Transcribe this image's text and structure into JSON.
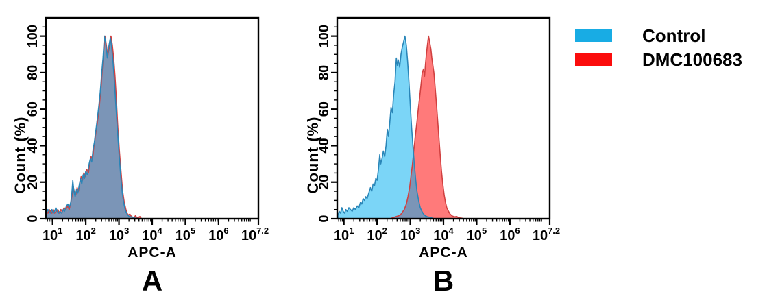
{
  "figure": {
    "background": "#ffffff"
  },
  "legend": {
    "items": [
      {
        "label": "Control",
        "color": "#18ace4"
      },
      {
        "label": "DMC100683",
        "color": "#fb0d0d"
      }
    ]
  },
  "chart_data": [
    {
      "id": "panel-a",
      "type": "area",
      "panel_label": "A",
      "xlabel": "APC-A",
      "ylabel": "Count (%)",
      "x_scale": "log10",
      "xlim_log": [
        0.8,
        7.2
      ],
      "ylim": [
        0,
        110
      ],
      "grid": false,
      "xticks": [
        {
          "base": "10",
          "exp": "1",
          "log": 1
        },
        {
          "base": "10",
          "exp": "2",
          "log": 2
        },
        {
          "base": "10",
          "exp": "3",
          "log": 3
        },
        {
          "base": "10",
          "exp": "4",
          "log": 4
        },
        {
          "base": "10",
          "exp": "5",
          "log": 5
        },
        {
          "base": "10",
          "exp": "6",
          "log": 6
        },
        {
          "base": "10",
          "exp": "7.2",
          "log": 7.2
        }
      ],
      "yticks": [
        {
          "label": "0",
          "value": 0
        },
        {
          "label": "20",
          "value": 20
        },
        {
          "label": "40",
          "value": 40
        },
        {
          "label": "60",
          "value": 60
        },
        {
          "label": "80",
          "value": 80
        },
        {
          "label": "100",
          "value": 100
        }
      ],
      "series": [
        {
          "name": "DMC100683",
          "fill": "rgba(255,0,0,0.52)",
          "stroke": "#d14040",
          "points": [
            [
              0.82,
              4
            ],
            [
              0.86,
              3
            ],
            [
              0.9,
              5
            ],
            [
              0.94,
              4
            ],
            [
              0.98,
              3
            ],
            [
              1.02,
              5
            ],
            [
              1.06,
              3
            ],
            [
              1.11,
              4
            ],
            [
              1.16,
              5
            ],
            [
              1.2,
              3
            ],
            [
              1.25,
              5
            ],
            [
              1.3,
              4
            ],
            [
              1.35,
              6
            ],
            [
              1.4,
              5
            ],
            [
              1.45,
              7
            ],
            [
              1.5,
              5
            ],
            [
              1.54,
              8
            ],
            [
              1.58,
              12
            ],
            [
              1.62,
              18
            ],
            [
              1.66,
              14
            ],
            [
              1.7,
              13
            ],
            [
              1.74,
              17
            ],
            [
              1.78,
              15
            ],
            [
              1.82,
              20
            ],
            [
              1.86,
              23
            ],
            [
              1.9,
              21
            ],
            [
              1.94,
              25
            ],
            [
              1.98,
              23
            ],
            [
              2.03,
              27
            ],
            [
              2.08,
              25
            ],
            [
              2.12,
              31
            ],
            [
              2.16,
              34
            ],
            [
              2.2,
              32
            ],
            [
              2.24,
              39
            ],
            [
              2.28,
              44
            ],
            [
              2.33,
              50
            ],
            [
              2.38,
              57
            ],
            [
              2.42,
              64
            ],
            [
              2.46,
              72
            ],
            [
              2.5,
              82
            ],
            [
              2.54,
              92
            ],
            [
              2.58,
              100
            ],
            [
              2.62,
              95
            ],
            [
              2.66,
              89
            ],
            [
              2.71,
              94
            ],
            [
              2.76,
              100
            ],
            [
              2.8,
              95
            ],
            [
              2.84,
              88
            ],
            [
              2.88,
              78
            ],
            [
              2.92,
              66
            ],
            [
              2.96,
              52
            ],
            [
              3.01,
              38
            ],
            [
              3.06,
              26
            ],
            [
              3.11,
              15
            ],
            [
              3.16,
              9
            ],
            [
              3.21,
              5
            ],
            [
              3.27,
              2
            ],
            [
              3.33,
              2.5
            ],
            [
              3.38,
              1
            ],
            [
              3.45,
              0.3
            ],
            [
              3.5,
              1.8
            ],
            [
              3.54,
              0.3
            ],
            [
              3.63,
              1.2
            ],
            [
              3.68,
              0
            ]
          ]
        },
        {
          "name": "Control",
          "fill": "rgba(2,174,239,0.52)",
          "stroke": "#2a86b8",
          "points": [
            [
              0.82,
              3
            ],
            [
              0.86,
              5
            ],
            [
              0.9,
              4
            ],
            [
              0.94,
              3
            ],
            [
              0.98,
              5
            ],
            [
              1.02,
              3
            ],
            [
              1.06,
              4
            ],
            [
              1.1,
              6
            ],
            [
              1.14,
              4
            ],
            [
              1.18,
              3
            ],
            [
              1.22,
              4
            ],
            [
              1.27,
              3
            ],
            [
              1.32,
              5
            ],
            [
              1.36,
              4
            ],
            [
              1.42,
              7
            ],
            [
              1.46,
              8
            ],
            [
              1.5,
              6
            ],
            [
              1.55,
              9
            ],
            [
              1.58,
              14
            ],
            [
              1.61,
              21
            ],
            [
              1.64,
              15
            ],
            [
              1.68,
              12
            ],
            [
              1.72,
              16
            ],
            [
              1.76,
              14
            ],
            [
              1.8,
              18
            ],
            [
              1.84,
              22
            ],
            [
              1.88,
              19
            ],
            [
              1.92,
              24
            ],
            [
              1.96,
              22
            ],
            [
              2.0,
              26
            ],
            [
              2.05,
              24
            ],
            [
              2.1,
              30
            ],
            [
              2.14,
              33
            ],
            [
              2.18,
              31
            ],
            [
              2.22,
              38
            ],
            [
              2.26,
              42
            ],
            [
              2.3,
              48
            ],
            [
              2.35,
              55
            ],
            [
              2.4,
              63
            ],
            [
              2.44,
              70
            ],
            [
              2.48,
              80
            ],
            [
              2.52,
              88
            ],
            [
              2.56,
              100
            ],
            [
              2.6,
              96
            ],
            [
              2.65,
              88
            ],
            [
              2.7,
              95
            ],
            [
              2.74,
              99
            ],
            [
              2.78,
              94
            ],
            [
              2.82,
              86
            ],
            [
              2.86,
              76
            ],
            [
              2.9,
              64
            ],
            [
              2.95,
              50
            ],
            [
              3.0,
              36
            ],
            [
              3.05,
              24
            ],
            [
              3.1,
              14
            ],
            [
              3.15,
              8
            ],
            [
              3.2,
              4
            ],
            [
              3.26,
              2
            ],
            [
              3.32,
              1
            ],
            [
              3.4,
              1
            ],
            [
              3.46,
              0.4
            ],
            [
              3.55,
              0.2
            ],
            [
              3.6,
              0
            ]
          ]
        }
      ]
    },
    {
      "id": "panel-b",
      "type": "area",
      "panel_label": "B",
      "xlabel": "APC-A",
      "ylabel": "Count (%)",
      "x_scale": "log10",
      "xlim_log": [
        0.8,
        7.2
      ],
      "ylim": [
        0,
        110
      ],
      "grid": false,
      "xticks": [
        {
          "base": "10",
          "exp": "1",
          "log": 1
        },
        {
          "base": "10",
          "exp": "2",
          "log": 2
        },
        {
          "base": "10",
          "exp": "3",
          "log": 3
        },
        {
          "base": "10",
          "exp": "4",
          "log": 4
        },
        {
          "base": "10",
          "exp": "5",
          "log": 5
        },
        {
          "base": "10",
          "exp": "6",
          "log": 6
        },
        {
          "base": "10",
          "exp": "7.2",
          "log": 7.2
        }
      ],
      "yticks": [
        {
          "label": "0",
          "value": 0
        },
        {
          "label": "20",
          "value": 20
        },
        {
          "label": "40",
          "value": 40
        },
        {
          "label": "60",
          "value": 60
        },
        {
          "label": "80",
          "value": 80
        },
        {
          "label": "100",
          "value": 100
        }
      ],
      "series": [
        {
          "name": "DMC100683",
          "fill": "rgba(255,0,0,0.52)",
          "stroke": "#d14040",
          "points": [
            [
              2.45,
              0.4
            ],
            [
              2.52,
              0.8
            ],
            [
              2.58,
              1.2
            ],
            [
              2.64,
              1.5
            ],
            [
              2.7,
              2
            ],
            [
              2.76,
              3.5
            ],
            [
              2.82,
              5
            ],
            [
              2.88,
              8
            ],
            [
              2.93,
              12
            ],
            [
              2.98,
              17
            ],
            [
              3.02,
              23
            ],
            [
              3.06,
              29
            ],
            [
              3.1,
              36
            ],
            [
              3.15,
              45
            ],
            [
              3.2,
              53
            ],
            [
              3.24,
              60
            ],
            [
              3.28,
              66
            ],
            [
              3.32,
              73
            ],
            [
              3.36,
              80
            ],
            [
              3.4,
              82
            ],
            [
              3.43,
              78
            ],
            [
              3.46,
              85
            ],
            [
              3.49,
              91
            ],
            [
              3.52,
              96
            ],
            [
              3.55,
              100
            ],
            [
              3.58,
              97
            ],
            [
              3.62,
              93
            ],
            [
              3.65,
              88
            ],
            [
              3.68,
              84
            ],
            [
              3.71,
              80
            ],
            [
              3.74,
              74
            ],
            [
              3.78,
              65
            ],
            [
              3.82,
              55
            ],
            [
              3.86,
              45
            ],
            [
              3.9,
              35
            ],
            [
              3.94,
              26
            ],
            [
              3.98,
              19
            ],
            [
              4.02,
              13
            ],
            [
              4.06,
              9
            ],
            [
              4.1,
              6
            ],
            [
              4.15,
              4
            ],
            [
              4.2,
              2.5
            ],
            [
              4.26,
              1.5
            ],
            [
              4.33,
              1
            ],
            [
              4.4,
              1.2
            ],
            [
              4.46,
              0.5
            ],
            [
              4.55,
              0.3
            ],
            [
              4.62,
              0
            ]
          ]
        },
        {
          "name": "Control",
          "fill": "rgba(2,174,239,0.52)",
          "stroke": "#2a86b8",
          "points": [
            [
              0.82,
              2
            ],
            [
              0.86,
              4
            ],
            [
              0.9,
              3
            ],
            [
              0.94,
              6
            ],
            [
              0.98,
              4
            ],
            [
              1.02,
              3
            ],
            [
              1.06,
              5
            ],
            [
              1.1,
              4
            ],
            [
              1.15,
              6
            ],
            [
              1.2,
              5
            ],
            [
              1.25,
              4
            ],
            [
              1.3,
              6
            ],
            [
              1.35,
              5
            ],
            [
              1.4,
              7
            ],
            [
              1.45,
              6
            ],
            [
              1.5,
              9
            ],
            [
              1.54,
              8
            ],
            [
              1.58,
              11
            ],
            [
              1.62,
              10
            ],
            [
              1.66,
              12
            ],
            [
              1.7,
              11
            ],
            [
              1.75,
              14
            ],
            [
              1.8,
              17
            ],
            [
              1.84,
              15
            ],
            [
              1.88,
              19
            ],
            [
              1.92,
              18
            ],
            [
              1.96,
              22
            ],
            [
              2.0,
              21
            ],
            [
              2.04,
              27
            ],
            [
              2.08,
              35
            ],
            [
              2.11,
              30
            ],
            [
              2.15,
              33
            ],
            [
              2.19,
              37
            ],
            [
              2.23,
              34
            ],
            [
              2.27,
              40
            ],
            [
              2.31,
              49
            ],
            [
              2.34,
              45
            ],
            [
              2.38,
              52
            ],
            [
              2.42,
              61
            ],
            [
              2.46,
              58
            ],
            [
              2.5,
              68
            ],
            [
              2.54,
              75
            ],
            [
              2.58,
              88
            ],
            [
              2.61,
              84
            ],
            [
              2.64,
              87
            ],
            [
              2.68,
              83
            ],
            [
              2.72,
              90
            ],
            [
              2.76,
              94
            ],
            [
              2.8,
              97
            ],
            [
              2.84,
              100
            ],
            [
              2.88,
              95
            ],
            [
              2.92,
              86
            ],
            [
              2.96,
              75
            ],
            [
              3.0,
              62
            ],
            [
              3.04,
              50
            ],
            [
              3.08,
              40
            ],
            [
              3.12,
              30
            ],
            [
              3.16,
              22
            ],
            [
              3.2,
              15
            ],
            [
              3.25,
              10
            ],
            [
              3.3,
              6
            ],
            [
              3.35,
              4
            ],
            [
              3.4,
              2.5
            ],
            [
              3.46,
              1.5
            ],
            [
              3.52,
              1
            ],
            [
              3.58,
              0.8
            ],
            [
              3.65,
              0.4
            ],
            [
              3.72,
              0
            ]
          ]
        }
      ]
    }
  ]
}
